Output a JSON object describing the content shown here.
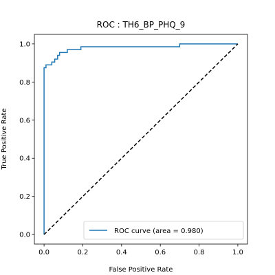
{
  "chart_data": {
    "type": "line",
    "title": "ROC : TH6_BP_PHQ_9",
    "xlabel": "False Positive Rate",
    "ylabel": "True Positive Rate",
    "xlim": [
      -0.05,
      1.05
    ],
    "ylim": [
      -0.05,
      1.05
    ],
    "x_ticks": [
      0.0,
      0.2,
      0.4,
      0.6,
      0.8,
      1.0
    ],
    "y_ticks": [
      0.0,
      0.2,
      0.4,
      0.6,
      0.8,
      1.0
    ],
    "x_tick_labels": [
      "0.0",
      "0.2",
      "0.4",
      "0.6",
      "0.8",
      "1.0"
    ],
    "y_tick_labels": [
      "0.0",
      "0.2",
      "0.4",
      "0.6",
      "0.8",
      "1.0"
    ],
    "grid": false,
    "legend_position": "lower-right",
    "series": [
      {
        "name": "ROC curve (area = 0.980)",
        "color": "#1f77b4",
        "style": "solid",
        "x": [
          0.0,
          0.0,
          0.01,
          0.01,
          0.04,
          0.04,
          0.055,
          0.055,
          0.07,
          0.07,
          0.08,
          0.08,
          0.12,
          0.12,
          0.19,
          0.19,
          0.7,
          0.7,
          1.0
        ],
        "y": [
          0.0,
          0.875,
          0.875,
          0.89,
          0.89,
          0.905,
          0.905,
          0.92,
          0.92,
          0.94,
          0.94,
          0.955,
          0.955,
          0.97,
          0.97,
          0.985,
          0.985,
          1.0,
          1.0
        ]
      },
      {
        "name": "",
        "color": "#000000",
        "style": "dashed",
        "x": [
          0.0,
          1.0
        ],
        "y": [
          0.0,
          1.0
        ]
      }
    ]
  }
}
